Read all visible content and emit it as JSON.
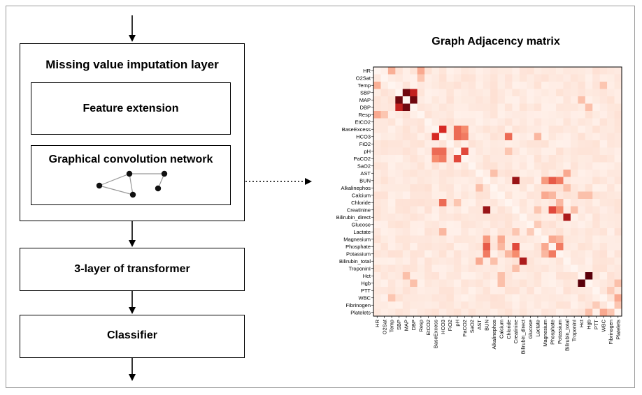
{
  "diagram": {
    "outer_title": "Missing value imputation layer",
    "feature_extension": "Feature extension",
    "gcn": "Graphical convolution network",
    "transformer": "3-layer of transformer",
    "classifier": "Classifier"
  },
  "chart_data": {
    "type": "heatmap",
    "title": "Graph Adjacency matrix",
    "colormap": "white-to-dark-red",
    "value_range": [
      0,
      1
    ],
    "row_labels": [
      "HR",
      "O2Sat",
      "Temp",
      "SBP",
      "MAP",
      "DBP",
      "Resp",
      "EtCO2",
      "BaseExcess",
      "HCO3",
      "FiO2",
      "pH",
      "PaCO2",
      "SaO2",
      "AST",
      "BUN",
      "Alkalinephos",
      "Calcium",
      "Chloride",
      "Creatinine",
      "Bilirubin_direct",
      "Glucose",
      "Lactate",
      "Magnesium",
      "Phosphate",
      "Potassium",
      "Bilirubin_total",
      "TroponinI",
      "Hct",
      "Hgb",
      "PTT",
      "WBC",
      "Fibrinogen",
      "Platelets"
    ],
    "col_labels": [
      "HR",
      "O2Sat",
      "Temp",
      "SBP",
      "MAP",
      "DBP",
      "Resp",
      "EtCO2",
      "BaseExcess",
      "HCO3",
      "FiO2",
      "pH",
      "PaCO2",
      "SaO2",
      "AST",
      "BUN",
      "Alkalinephos",
      "Calcium",
      "Chloride",
      "Creatinine",
      "Bilirubin_direct",
      "Glucose",
      "Lactate",
      "Magnesium",
      "Phosphate",
      "Potassium",
      "Bilirubin_total",
      "TroponinI",
      "Hct",
      "Hgb",
      "PTT",
      "WBC",
      "Fibrinogen",
      "Platelets"
    ],
    "background_value": 0.06,
    "strong_links": [
      {
        "row": "SBP",
        "col": "MAP",
        "value": 0.95
      },
      {
        "row": "SBP",
        "col": "DBP",
        "value": 0.75
      },
      {
        "row": "MAP",
        "col": "DBP",
        "value": 0.95
      },
      {
        "row": "BaseExcess",
        "col": "HCO3",
        "value": 0.7
      },
      {
        "row": "BaseExcess",
        "col": "pH",
        "value": 0.5
      },
      {
        "row": "HCO3",
        "col": "pH",
        "value": 0.5
      },
      {
        "row": "HCO3",
        "col": "PaCO2",
        "value": 0.45
      },
      {
        "row": "pH",
        "col": "PaCO2",
        "value": 0.6
      },
      {
        "row": "BaseExcess",
        "col": "PaCO2",
        "value": 0.4
      },
      {
        "row": "HCO3",
        "col": "Chloride",
        "value": 0.5
      },
      {
        "row": "BUN",
        "col": "Creatinine",
        "value": 0.85
      },
      {
        "row": "BUN",
        "col": "Phosphate",
        "value": 0.55
      },
      {
        "row": "BUN",
        "col": "Potassium",
        "value": 0.45
      },
      {
        "row": "BUN",
        "col": "Magnesium",
        "value": 0.35
      },
      {
        "row": "Creatinine",
        "col": "Phosphate",
        "value": 0.6
      },
      {
        "row": "Creatinine",
        "col": "Potassium",
        "value": 0.4
      },
      {
        "row": "Bilirubin_direct",
        "col": "Bilirubin_total",
        "value": 0.8
      },
      {
        "row": "Phosphate",
        "col": "Potassium",
        "value": 0.45
      },
      {
        "row": "Phosphate",
        "col": "Magnesium",
        "value": 0.3
      },
      {
        "row": "Hct",
        "col": "Hgb",
        "value": 1.0
      },
      {
        "row": "Calcium",
        "col": "Magnesium",
        "value": 0.3
      },
      {
        "row": "AST",
        "col": "Bilirubin_total",
        "value": 0.3
      },
      {
        "row": "Chloride",
        "col": "Potassium",
        "value": 0.25
      },
      {
        "row": "Lactate",
        "col": "HCO3",
        "value": 0.25
      },
      {
        "row": "Temp",
        "col": "HR",
        "value": 0.28
      },
      {
        "row": "Resp",
        "col": "HR",
        "value": 0.3
      },
      {
        "row": "Resp",
        "col": "O2Sat",
        "value": 0.2
      },
      {
        "row": "Hgb",
        "col": "Platelets",
        "value": 0.22
      },
      {
        "row": "WBC",
        "col": "Platelets",
        "value": 0.3
      },
      {
        "row": "WBC",
        "col": "Temp",
        "value": 0.2
      },
      {
        "row": "Fibrinogen",
        "col": "Platelets",
        "value": 0.2
      },
      {
        "row": "PTT",
        "col": "Fibrinogen",
        "value": 0.18
      },
      {
        "row": "Glucose",
        "col": "Lactate",
        "value": 0.18
      },
      {
        "row": "Alkalinephos",
        "col": "AST",
        "value": 0.22
      },
      {
        "row": "Alkalinephos",
        "col": "Bilirubin_total",
        "value": 0.22
      },
      {
        "row": "Calcium",
        "col": "Phosphate",
        "value": 0.25
      },
      {
        "row": "Chloride",
        "col": "pH",
        "value": 0.2
      },
      {
        "row": "HR",
        "col": "Resp",
        "value": 0.3
      },
      {
        "row": "Hct",
        "col": "MAP",
        "value": 0.22
      },
      {
        "row": "Hgb",
        "col": "DBP",
        "value": 0.22
      },
      {
        "row": "Hct",
        "col": "Calcium",
        "value": 0.22
      },
      {
        "row": "Hgb",
        "col": "Calcium",
        "value": 0.22
      },
      {
        "row": "Lactate",
        "col": "Creatinine",
        "value": 0.2
      },
      {
        "row": "TroponinI",
        "col": "Creatinine",
        "value": 0.22
      },
      {
        "row": "Magnesium",
        "col": "Potassium",
        "value": 0.25
      }
    ]
  }
}
